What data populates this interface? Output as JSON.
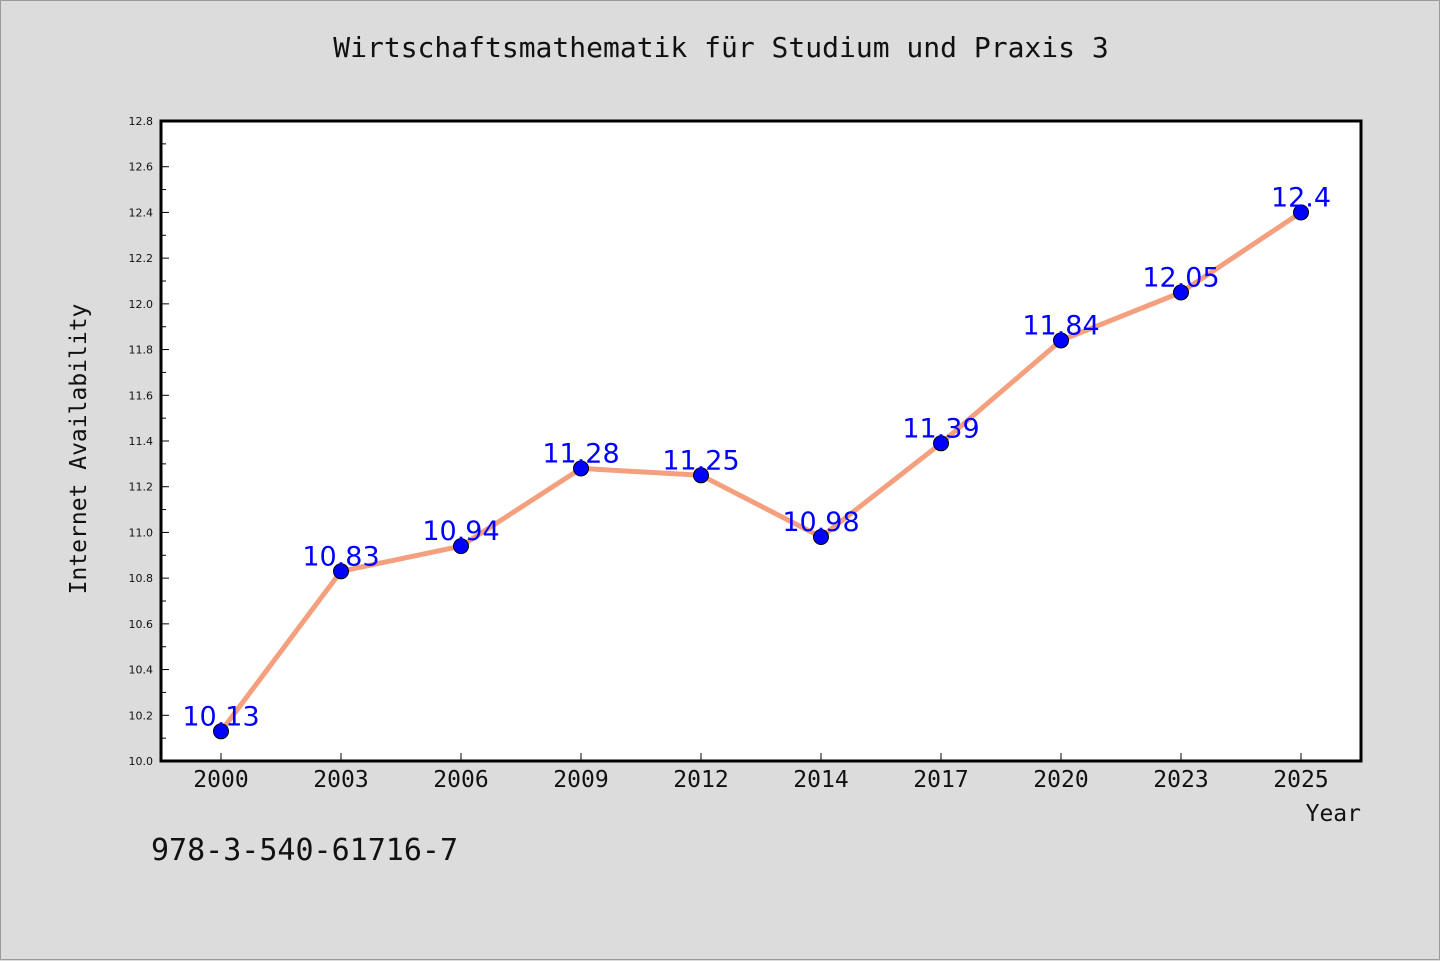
{
  "title": "Wirtschaftsmathematik für Studium und Praxis 3",
  "footer_text": "978-3-540-61716-7",
  "colors": {
    "background": "#dcdcdc",
    "plot_background": "#ffffff",
    "line": "#f4a07f",
    "marker": "#0000ff",
    "data_label": "#0000ff",
    "text": "#111111"
  },
  "chart_data": {
    "type": "line",
    "xlabel": "Year",
    "ylabel": "Internet Availability",
    "categories": [
      "2000",
      "2003",
      "2006",
      "2009",
      "2012",
      "2014",
      "2017",
      "2020",
      "2023",
      "2025"
    ],
    "series": [
      {
        "values": [
          10.13,
          10.83,
          10.94,
          11.28,
          11.25,
          10.98,
          11.39,
          11.84,
          12.05,
          12.4
        ],
        "data_labels": [
          "10.13",
          "10.83",
          "10.94",
          "11.28",
          "11.25",
          "10.98",
          "11.39",
          "11.84",
          "12.05",
          "12.4"
        ]
      }
    ],
    "ylim": [
      10.0,
      12.8
    ],
    "yticks": [
      "10.0",
      "10.2",
      "10.4",
      "10.6",
      "10.8",
      "11.0",
      "11.2",
      "11.4",
      "11.6",
      "11.8",
      "12.0",
      "12.2",
      "12.4",
      "12.6",
      "12.8"
    ],
    "grid": false,
    "legend": "none"
  }
}
